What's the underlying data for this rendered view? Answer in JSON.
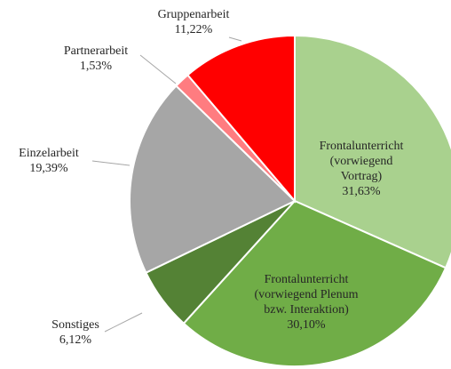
{
  "chart_data": {
    "type": "pie",
    "categories": [
      "Frontalunterricht (vorwiegend Vortrag)",
      "Frontalunterricht (vorwiegend Plenum bzw. Interaktion)",
      "Sonstiges",
      "Einzelarbeit",
      "Partnerarbeit",
      "Gruppenarbeit"
    ],
    "values": [
      31.63,
      30.1,
      6.12,
      19.39,
      1.53,
      11.22
    ],
    "value_labels": [
      "31,63%",
      "30,10%",
      "6,12%",
      "19,39%",
      "1,53%",
      "11,22%"
    ],
    "colors": [
      "#a9d18e",
      "#70ad47",
      "#548235",
      "#a6a6a6",
      "#ff7c80",
      "#ff0000"
    ]
  }
}
